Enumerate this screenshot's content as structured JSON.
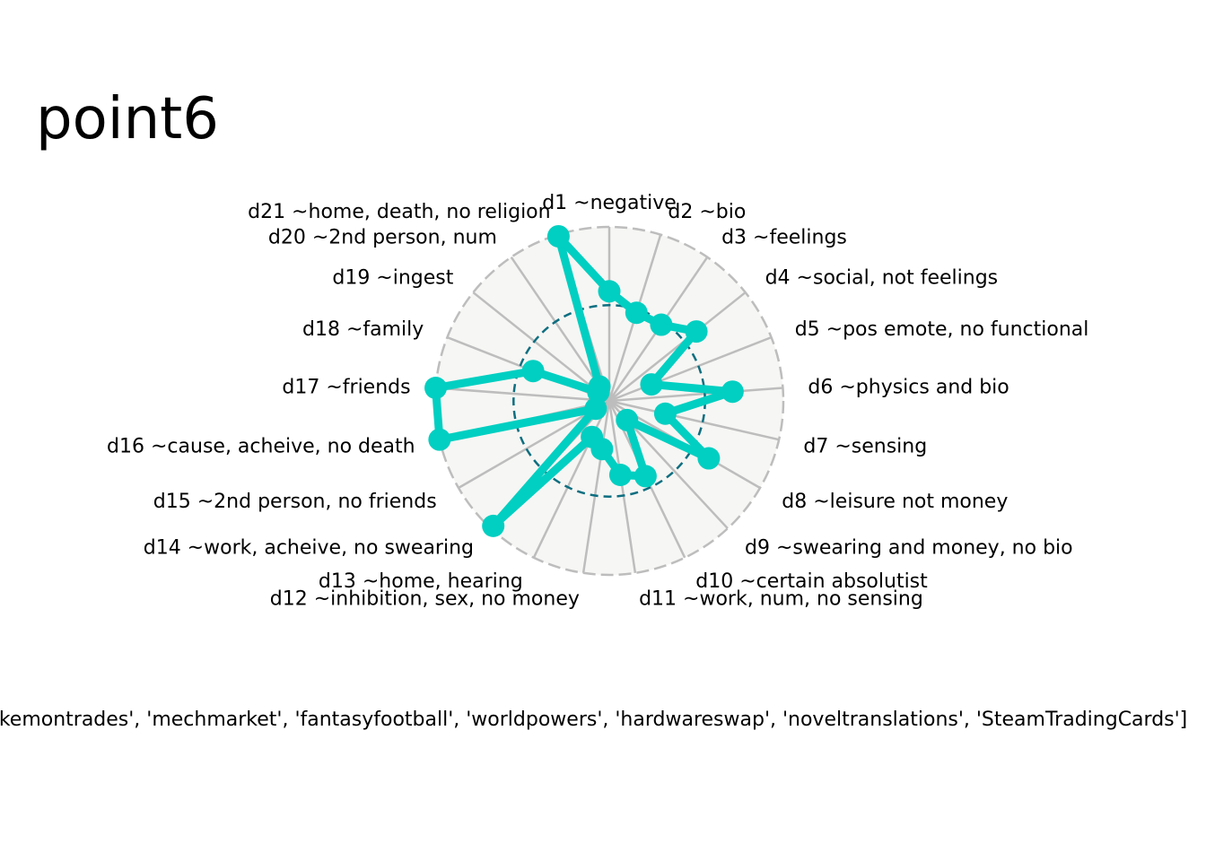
{
  "chart_data": {
    "type": "radar",
    "title": "point6",
    "categories": [
      "d1 ~negative",
      "d2 ~bio",
      "d3 ~feelings",
      "d4 ~social, not feelings",
      "d5 ~pos emote, no functional",
      "d6 ~physics and bio",
      "d7 ~sensing",
      "d8 ~leisure not money",
      "d9 ~swearing and money, no bio",
      "d10 ~certain absolutist",
      "d11 ~work, num, no sensing",
      "d12 ~inhibition, sex, no money",
      "d13 ~home, hearing",
      "d14 ~work, acheive, no swearing",
      "d15 ~2nd person, no friends",
      "d16 ~cause, acheive, no death",
      "d17 ~friends",
      "d18 ~family",
      "d19 ~ingest",
      "d20 ~2nd person, num",
      "d21 ~home, death, no religion"
    ],
    "series": [
      {
        "values": [
          0.63,
          0.53,
          0.53,
          0.64,
          0.26,
          0.71,
          0.33,
          0.66,
          0.15,
          0.48,
          0.43,
          0.28,
          0.23,
          0.98,
          0.09,
          1.0,
          1.0,
          0.47,
          0.08,
          0.1,
          0.99
        ]
      }
    ],
    "rlim": [
      0,
      1
    ],
    "reference_circle": 0.55,
    "caption": "['pokemontrades', 'mechmarket', 'fantasyfootball', 'worldpowers', 'hardwareswap', 'noveltranslations', 'SteamTradingCards']",
    "colors": {
      "series": "#00cfc1",
      "reference": "#0d6e80",
      "grid": "#bdbdbd",
      "background": "#f6f6f4"
    }
  }
}
